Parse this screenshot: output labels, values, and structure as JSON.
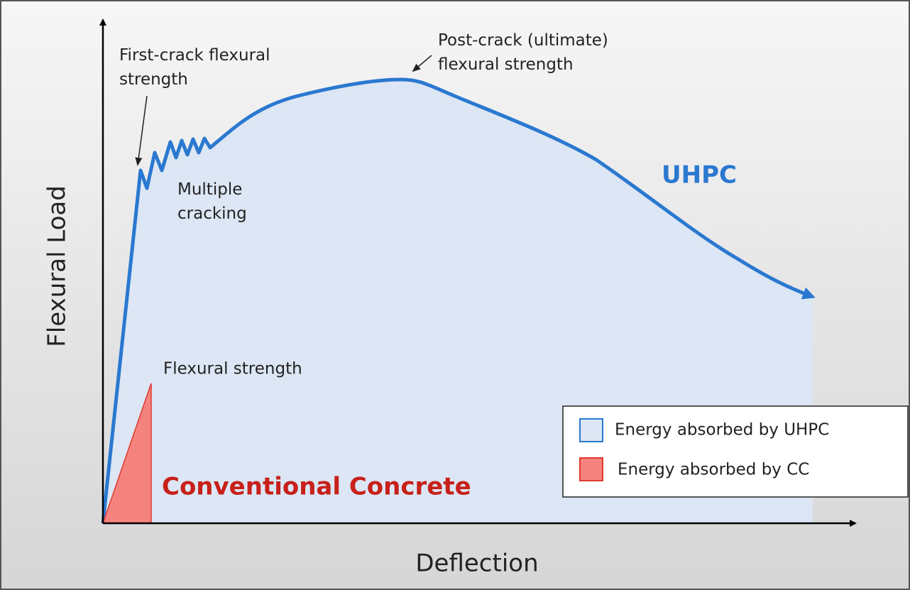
{
  "y_axis_label": "Flexural Load",
  "x_axis_label": "Deflection",
  "annotations": {
    "first_crack": [
      "First-crack flexural",
      "strength"
    ],
    "multiple_cracking": [
      "Multiple",
      "cracking"
    ],
    "post_crack": [
      "Post-crack (ultimate)",
      "flexural strength"
    ],
    "flexural_strength": "Flexural strength"
  },
  "curve_labels": {
    "uhpc": "UHPC",
    "cc": "Conventional Concrete"
  },
  "legend": [
    "Energy absorbed by UHPC",
    "Energy absorbed by CC"
  ]
}
